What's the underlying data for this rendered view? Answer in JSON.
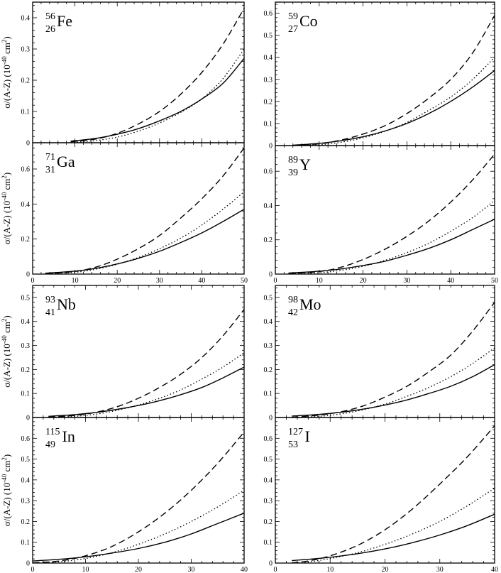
{
  "figure": {
    "ylabel_prefix": "σ/(A-Z)  (10",
    "ylabel_exp": "-40",
    "ylabel_unit": " cm",
    "ylabel_sq": "2",
    "ylabel_close": ")"
  },
  "chart_data": [
    {
      "type": "line",
      "panel": "fe56",
      "nucleus": {
        "mass": "56",
        "z": "26",
        "symbol": "Fe"
      },
      "xlim": [
        0,
        50
      ],
      "ylim": [
        0,
        0.45
      ],
      "xticks": [
        0,
        10,
        20,
        30,
        40,
        50
      ],
      "xtick_labels_shown": false,
      "yticks": [
        0,
        0.1,
        0.2,
        0.3,
        0.4
      ],
      "series": [
        {
          "style": "solid",
          "x": [
            9,
            15,
            20,
            25,
            30,
            35,
            40,
            45,
            50
          ],
          "y": [
            0.005,
            0.014,
            0.027,
            0.045,
            0.07,
            0.1,
            0.14,
            0.19,
            0.27
          ]
        },
        {
          "style": "dashed",
          "x": [
            9,
            15,
            20,
            25,
            30,
            35,
            40,
            45,
            50
          ],
          "y": [
            0.003,
            0.012,
            0.03,
            0.06,
            0.1,
            0.155,
            0.225,
            0.315,
            0.43
          ]
        },
        {
          "style": "dotted",
          "x": [
            9,
            15,
            20,
            25,
            30,
            35,
            40,
            45,
            50
          ],
          "y": [
            0.001,
            0.007,
            0.018,
            0.037,
            0.063,
            0.097,
            0.14,
            0.205,
            0.3
          ]
        }
      ]
    },
    {
      "type": "line",
      "panel": "co59",
      "nucleus": {
        "mass": "59",
        "z": "27",
        "symbol": "Co"
      },
      "xlim": [
        0,
        50
      ],
      "ylim": [
        0,
        0.65
      ],
      "xticks": [
        0,
        10,
        20,
        30,
        40,
        50
      ],
      "xtick_labels_shown": false,
      "yticks": [
        0,
        0.1,
        0.2,
        0.3,
        0.4,
        0.5,
        0.6
      ],
      "series": [
        {
          "style": "solid",
          "x": [
            4,
            10,
            15,
            20,
            25,
            30,
            35,
            40,
            45,
            50
          ],
          "y": [
            0.002,
            0.01,
            0.022,
            0.04,
            0.066,
            0.1,
            0.145,
            0.2,
            0.265,
            0.34
          ]
        },
        {
          "style": "dashed",
          "x": [
            4,
            10,
            15,
            20,
            25,
            30,
            35,
            40,
            45,
            50
          ],
          "y": [
            0.001,
            0.008,
            0.025,
            0.052,
            0.09,
            0.145,
            0.215,
            0.3,
            0.42,
            0.59
          ]
        },
        {
          "style": "dotted",
          "x": [
            4,
            10,
            15,
            20,
            25,
            30,
            35,
            40,
            45,
            50
          ],
          "y": [
            0.0,
            0.004,
            0.015,
            0.035,
            0.065,
            0.105,
            0.16,
            0.22,
            0.3,
            0.4
          ]
        }
      ]
    },
    {
      "type": "line",
      "panel": "ga71",
      "nucleus": {
        "mass": "71",
        "z": "31",
        "symbol": "Ga"
      },
      "xlim": [
        0,
        50
      ],
      "ylim": [
        0,
        0.75
      ],
      "xticks": [
        0,
        10,
        20,
        30,
        40,
        50
      ],
      "xtick_labels_shown": true,
      "yticks": [
        0,
        0.2,
        0.4,
        0.6
      ],
      "series": [
        {
          "style": "solid",
          "x": [
            3,
            10,
            15,
            20,
            25,
            30,
            35,
            40,
            45,
            50
          ],
          "y": [
            0.005,
            0.017,
            0.033,
            0.058,
            0.09,
            0.13,
            0.18,
            0.235,
            0.3,
            0.37
          ]
        },
        {
          "style": "dashed",
          "x": [
            3,
            10,
            15,
            20,
            25,
            30,
            35,
            40,
            45,
            50
          ],
          "y": [
            0.002,
            0.015,
            0.04,
            0.085,
            0.145,
            0.22,
            0.32,
            0.43,
            0.56,
            0.72
          ]
        },
        {
          "style": "dotted",
          "x": [
            3,
            10,
            15,
            20,
            25,
            30,
            35,
            40,
            45,
            50
          ],
          "y": [
            0.001,
            0.01,
            0.028,
            0.056,
            0.095,
            0.145,
            0.205,
            0.28,
            0.37,
            0.47
          ]
        }
      ]
    },
    {
      "type": "line",
      "panel": "y89",
      "nucleus": {
        "mass": "89",
        "z": "39",
        "symbol": "Y"
      },
      "xlim": [
        0,
        50
      ],
      "ylim": [
        0,
        0.75
      ],
      "xticks": [
        0,
        10,
        20,
        30,
        40,
        50
      ],
      "xtick_labels_shown": true,
      "yticks": [
        0,
        0.2,
        0.4,
        0.6
      ],
      "series": [
        {
          "style": "solid",
          "x": [
            3,
            10,
            15,
            20,
            25,
            30,
            35,
            40,
            45,
            50
          ],
          "y": [
            0.006,
            0.017,
            0.03,
            0.05,
            0.075,
            0.11,
            0.15,
            0.2,
            0.26,
            0.32
          ]
        },
        {
          "style": "dashed",
          "x": [
            3,
            10,
            15,
            20,
            25,
            30,
            35,
            40,
            45,
            50
          ],
          "y": [
            0.003,
            0.015,
            0.04,
            0.085,
            0.145,
            0.22,
            0.31,
            0.42,
            0.55,
            0.7
          ]
        },
        {
          "style": "dotted",
          "x": [
            3,
            10,
            15,
            20,
            25,
            30,
            35,
            40,
            45,
            50
          ],
          "y": [
            0.001,
            0.008,
            0.022,
            0.045,
            0.08,
            0.125,
            0.18,
            0.25,
            0.33,
            0.43
          ]
        }
      ]
    },
    {
      "type": "line",
      "panel": "nb93",
      "nucleus": {
        "mass": "93",
        "z": "41",
        "symbol": "Nb"
      },
      "xlim": [
        0,
        40
      ],
      "ylim": [
        0,
        0.55
      ],
      "xticks": [
        0,
        10,
        20,
        30,
        40
      ],
      "xtick_labels_shown": false,
      "yticks": [
        0,
        0.1,
        0.2,
        0.3,
        0.4,
        0.5
      ],
      "series": [
        {
          "style": "solid",
          "x": [
            3,
            8,
            12,
            16,
            20,
            24,
            28,
            32,
            36,
            40
          ],
          "y": [
            0.005,
            0.012,
            0.021,
            0.034,
            0.05,
            0.07,
            0.095,
            0.125,
            0.165,
            0.21
          ]
        },
        {
          "style": "dashed",
          "x": [
            3,
            8,
            12,
            16,
            20,
            24,
            28,
            32,
            36,
            40
          ],
          "y": [
            0.001,
            0.009,
            0.022,
            0.045,
            0.08,
            0.125,
            0.18,
            0.25,
            0.34,
            0.45
          ]
        },
        {
          "style": "dotted",
          "x": [
            3,
            8,
            12,
            16,
            20,
            24,
            28,
            32,
            36,
            40
          ],
          "y": [
            0.0,
            0.005,
            0.014,
            0.03,
            0.052,
            0.08,
            0.115,
            0.16,
            0.21,
            0.27
          ]
        }
      ]
    },
    {
      "type": "line",
      "panel": "mo98",
      "nucleus": {
        "mass": "98",
        "z": "42",
        "symbol": "Mo"
      },
      "xlim": [
        0,
        40
      ],
      "ylim": [
        0,
        0.55
      ],
      "xticks": [
        0,
        10,
        20,
        30,
        40
      ],
      "xtick_labels_shown": false,
      "yticks": [
        0,
        0.1,
        0.2,
        0.3,
        0.4,
        0.5
      ],
      "series": [
        {
          "style": "solid",
          "x": [
            3,
            8,
            12,
            16,
            20,
            24,
            28,
            32,
            36,
            40
          ],
          "y": [
            0.006,
            0.013,
            0.022,
            0.035,
            0.052,
            0.073,
            0.1,
            0.13,
            0.17,
            0.22
          ]
        },
        {
          "style": "dashed",
          "x": [
            3,
            8,
            12,
            16,
            20,
            24,
            28,
            32,
            36,
            40
          ],
          "y": [
            0.001,
            0.01,
            0.024,
            0.048,
            0.085,
            0.13,
            0.19,
            0.26,
            0.36,
            0.48
          ]
        },
        {
          "style": "dotted",
          "x": [
            3,
            8,
            12,
            16,
            20,
            24,
            28,
            32,
            36,
            40
          ],
          "y": [
            0.0,
            0.005,
            0.015,
            0.032,
            0.056,
            0.088,
            0.125,
            0.17,
            0.225,
            0.29
          ]
        }
      ]
    },
    {
      "type": "line",
      "panel": "in115",
      "nucleus": {
        "mass": "115",
        "z": "49",
        "symbol": "In"
      },
      "xlim": [
        0,
        40
      ],
      "ylim": [
        0,
        0.7
      ],
      "xticks": [
        0,
        10,
        20,
        30,
        40
      ],
      "xtick_labels_shown": true,
      "yticks": [
        0,
        0.1,
        0.2,
        0.3,
        0.4,
        0.5,
        0.6
      ],
      "series": [
        {
          "style": "solid",
          "x": [
            0,
            5,
            10,
            15,
            20,
            25,
            30,
            35,
            40
          ],
          "y": [
            0.01,
            0.018,
            0.03,
            0.048,
            0.07,
            0.1,
            0.14,
            0.19,
            0.24
          ]
        },
        {
          "style": "dashed",
          "x": [
            0,
            5,
            10,
            15,
            20,
            25,
            30,
            35,
            40
          ],
          "y": [
            0.001,
            0.01,
            0.035,
            0.08,
            0.15,
            0.24,
            0.35,
            0.48,
            0.63
          ]
        },
        {
          "style": "dotted",
          "x": [
            0,
            5,
            10,
            15,
            20,
            25,
            30,
            35,
            40
          ],
          "y": [
            0.0,
            0.006,
            0.022,
            0.05,
            0.09,
            0.14,
            0.2,
            0.27,
            0.35
          ]
        }
      ]
    },
    {
      "type": "line",
      "panel": "i127",
      "nucleus": {
        "mass": "127",
        "z": "53",
        "symbol": "I"
      },
      "xlim": [
        0,
        40
      ],
      "ylim": [
        0,
        0.7
      ],
      "xticks": [
        0,
        10,
        20,
        30,
        40
      ],
      "xtick_labels_shown": true,
      "yticks": [
        0,
        0.1,
        0.2,
        0.3,
        0.4,
        0.5,
        0.6
      ],
      "series": [
        {
          "style": "solid",
          "x": [
            3,
            6,
            10,
            15,
            20,
            25,
            30,
            35,
            40
          ],
          "y": [
            0.012,
            0.018,
            0.028,
            0.045,
            0.068,
            0.098,
            0.135,
            0.18,
            0.235
          ]
        },
        {
          "style": "dashed",
          "x": [
            3,
            6,
            10,
            15,
            20,
            25,
            30,
            35,
            40
          ],
          "y": [
            0.001,
            0.01,
            0.035,
            0.085,
            0.16,
            0.26,
            0.38,
            0.51,
            0.66
          ]
        },
        {
          "style": "dotted",
          "x": [
            3,
            6,
            10,
            15,
            20,
            25,
            30,
            35,
            40
          ],
          "y": [
            0.0,
            0.005,
            0.022,
            0.05,
            0.09,
            0.14,
            0.2,
            0.275,
            0.36
          ]
        }
      ]
    }
  ]
}
